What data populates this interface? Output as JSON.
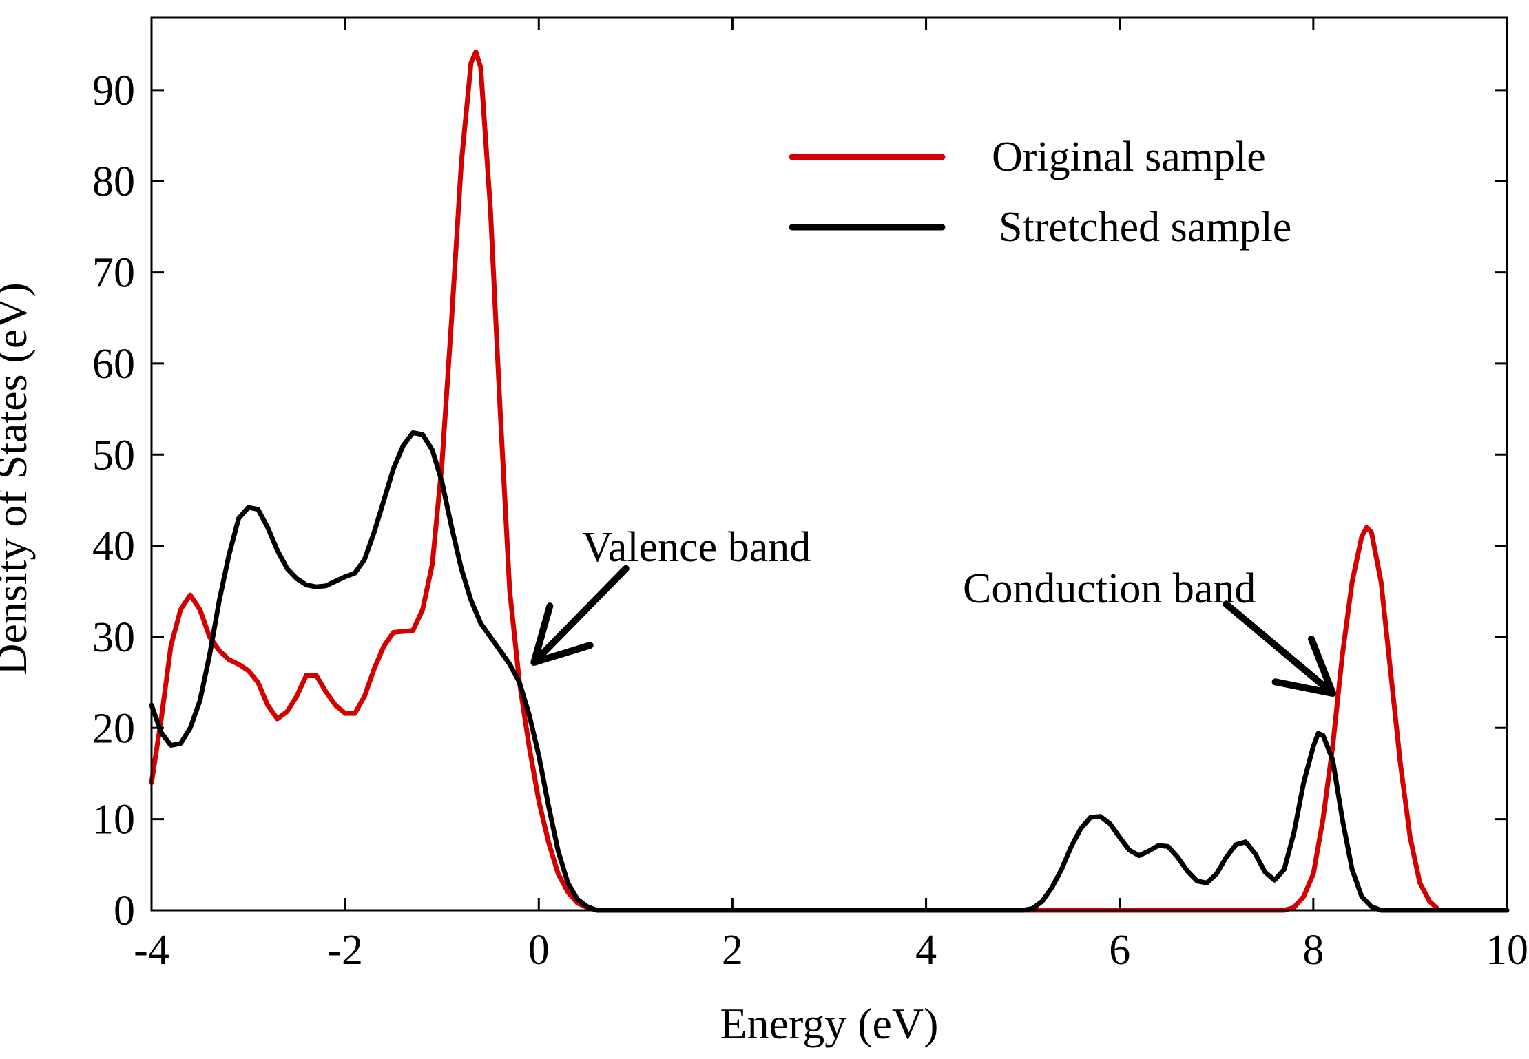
{
  "chart_data": {
    "type": "line",
    "title": "",
    "xlabel": "Energy (eV)",
    "ylabel": "Density of States (eV)",
    "xlim": [
      -4,
      10
    ],
    "ylim": [
      0,
      98
    ],
    "xticks": [
      -4,
      -2,
      0,
      2,
      4,
      6,
      8,
      10
    ],
    "yticks": [
      0,
      10,
      20,
      30,
      40,
      50,
      60,
      70,
      80,
      90
    ],
    "grid": false,
    "legend_position": "top-right",
    "series": [
      {
        "name": "Original sample",
        "color": "#d40000",
        "points": [
          [
            -4.0,
            14
          ],
          [
            -3.9,
            21
          ],
          [
            -3.8,
            29
          ],
          [
            -3.7,
            33
          ],
          [
            -3.6,
            34.6
          ],
          [
            -3.5,
            33
          ],
          [
            -3.4,
            30
          ],
          [
            -3.3,
            28.5
          ],
          [
            -3.2,
            27.5
          ],
          [
            -3.1,
            27
          ],
          [
            -3.0,
            26.3
          ],
          [
            -2.9,
            25
          ],
          [
            -2.8,
            22.5
          ],
          [
            -2.7,
            21
          ],
          [
            -2.6,
            21.8
          ],
          [
            -2.5,
            23.5
          ],
          [
            -2.4,
            25.8
          ],
          [
            -2.3,
            25.8
          ],
          [
            -2.2,
            24
          ],
          [
            -2.1,
            22.5
          ],
          [
            -2.0,
            21.6
          ],
          [
            -1.9,
            21.6
          ],
          [
            -1.8,
            23.5
          ],
          [
            -1.7,
            26.5
          ],
          [
            -1.6,
            29
          ],
          [
            -1.5,
            30.5
          ],
          [
            -1.4,
            30.6
          ],
          [
            -1.3,
            30.7
          ],
          [
            -1.2,
            33
          ],
          [
            -1.1,
            38
          ],
          [
            -1.0,
            49
          ],
          [
            -0.9,
            65
          ],
          [
            -0.8,
            82
          ],
          [
            -0.7,
            93
          ],
          [
            -0.65,
            94.2
          ],
          [
            -0.6,
            92.5
          ],
          [
            -0.5,
            77
          ],
          [
            -0.4,
            55
          ],
          [
            -0.3,
            35
          ],
          [
            -0.2,
            25
          ],
          [
            -0.1,
            18
          ],
          [
            0.0,
            12
          ],
          [
            0.1,
            7.5
          ],
          [
            0.2,
            4
          ],
          [
            0.3,
            2
          ],
          [
            0.4,
            0.8
          ],
          [
            0.5,
            0.3
          ],
          [
            0.6,
            0
          ],
          [
            1.0,
            0
          ],
          [
            3.0,
            0
          ],
          [
            5.0,
            0
          ],
          [
            7.0,
            0
          ],
          [
            7.7,
            0
          ],
          [
            7.8,
            0.3
          ],
          [
            7.9,
            1.5
          ],
          [
            8.0,
            4
          ],
          [
            8.1,
            10
          ],
          [
            8.2,
            18
          ],
          [
            8.3,
            28
          ],
          [
            8.4,
            36
          ],
          [
            8.5,
            41
          ],
          [
            8.55,
            42
          ],
          [
            8.6,
            41.5
          ],
          [
            8.7,
            36
          ],
          [
            8.8,
            26
          ],
          [
            8.9,
            16
          ],
          [
            9.0,
            8
          ],
          [
            9.1,
            3
          ],
          [
            9.2,
            1
          ],
          [
            9.3,
            0
          ],
          [
            9.5,
            0
          ],
          [
            10.0,
            0
          ]
        ]
      },
      {
        "name": "Stretched sample",
        "color": "#000000",
        "points": [
          [
            -4.0,
            22.5
          ],
          [
            -3.9,
            19.5
          ],
          [
            -3.8,
            18.1
          ],
          [
            -3.7,
            18.3
          ],
          [
            -3.6,
            20
          ],
          [
            -3.5,
            23
          ],
          [
            -3.4,
            28
          ],
          [
            -3.3,
            34
          ],
          [
            -3.2,
            39
          ],
          [
            -3.1,
            43
          ],
          [
            -3.0,
            44.2
          ],
          [
            -2.9,
            44
          ],
          [
            -2.8,
            42
          ],
          [
            -2.7,
            39.5
          ],
          [
            -2.6,
            37.5
          ],
          [
            -2.5,
            36.4
          ],
          [
            -2.4,
            35.7
          ],
          [
            -2.3,
            35.5
          ],
          [
            -2.2,
            35.6
          ],
          [
            -2.1,
            36.1
          ],
          [
            -2.0,
            36.6
          ],
          [
            -1.9,
            37
          ],
          [
            -1.8,
            38.5
          ],
          [
            -1.7,
            41.5
          ],
          [
            -1.6,
            45
          ],
          [
            -1.5,
            48.5
          ],
          [
            -1.4,
            51
          ],
          [
            -1.3,
            52.4
          ],
          [
            -1.2,
            52.2
          ],
          [
            -1.1,
            50.5
          ],
          [
            -1.0,
            47
          ],
          [
            -0.9,
            42
          ],
          [
            -0.8,
            37.5
          ],
          [
            -0.7,
            34
          ],
          [
            -0.6,
            31.5
          ],
          [
            -0.5,
            30
          ],
          [
            -0.4,
            28.5
          ],
          [
            -0.3,
            27
          ],
          [
            -0.2,
            25
          ],
          [
            -0.1,
            21.5
          ],
          [
            0.0,
            17
          ],
          [
            0.1,
            11.5
          ],
          [
            0.2,
            6.5
          ],
          [
            0.3,
            3
          ],
          [
            0.4,
            1.2
          ],
          [
            0.5,
            0.4
          ],
          [
            0.6,
            0
          ],
          [
            1.0,
            0
          ],
          [
            3.0,
            0
          ],
          [
            5.0,
            0
          ],
          [
            5.1,
            0.2
          ],
          [
            5.2,
            1
          ],
          [
            5.3,
            2.5
          ],
          [
            5.4,
            4.5
          ],
          [
            5.5,
            7
          ],
          [
            5.6,
            9
          ],
          [
            5.7,
            10.2
          ],
          [
            5.8,
            10.3
          ],
          [
            5.9,
            9.5
          ],
          [
            6.0,
            8
          ],
          [
            6.1,
            6.6
          ],
          [
            6.2,
            6
          ],
          [
            6.3,
            6.5
          ],
          [
            6.4,
            7.1
          ],
          [
            6.5,
            7
          ],
          [
            6.6,
            5.8
          ],
          [
            6.7,
            4.3
          ],
          [
            6.8,
            3.2
          ],
          [
            6.9,
            3
          ],
          [
            7.0,
            4
          ],
          [
            7.1,
            5.8
          ],
          [
            7.2,
            7.2
          ],
          [
            7.3,
            7.5
          ],
          [
            7.4,
            6.2
          ],
          [
            7.5,
            4.2
          ],
          [
            7.6,
            3.3
          ],
          [
            7.7,
            4.5
          ],
          [
            7.8,
            8.5
          ],
          [
            7.9,
            14
          ],
          [
            8.0,
            18
          ],
          [
            8.05,
            19.4
          ],
          [
            8.1,
            19.2
          ],
          [
            8.2,
            16.5
          ],
          [
            8.3,
            10
          ],
          [
            8.4,
            4.5
          ],
          [
            8.5,
            1.5
          ],
          [
            8.6,
            0.4
          ],
          [
            8.7,
            0
          ],
          [
            9.0,
            0
          ],
          [
            10.0,
            0
          ]
        ]
      }
    ],
    "annotations": [
      {
        "text": "Valence band",
        "arrow_tip": [
          -0.05,
          27.2
        ],
        "arrow_tail": [
          0.9,
          37.5
        ]
      },
      {
        "text": "Conduction band",
        "arrow_tip": [
          8.2,
          23.8
        ],
        "arrow_tail": [
          7.1,
          33.6
        ]
      }
    ]
  }
}
